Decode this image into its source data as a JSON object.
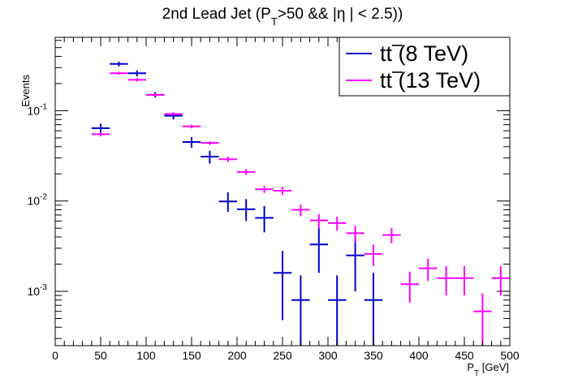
{
  "chart_data": {
    "type": "scatter",
    "title": "2nd Lead Jet (P_T>50 && |η | < 2.5))",
    "title_parts": {
      "a": "2nd Lead Jet (P",
      "sub": "T",
      "b": ">50 && |η | < 2.5))"
    },
    "xlabel": "P_T [GeV]",
    "xlabel_parts": {
      "a": "P",
      "sub": "T",
      "b": " [GeV]"
    },
    "ylabel": "Events",
    "xlim": [
      0,
      500
    ],
    "ylim": [
      0.00025,
      0.65
    ],
    "yscale": "log",
    "x_ticks": [
      0,
      50,
      100,
      150,
      200,
      250,
      300,
      350,
      400,
      450,
      500
    ],
    "x_tick_labels": [
      "0",
      "50",
      "100",
      "150",
      "200",
      "250",
      "300",
      "350",
      "400",
      "450",
      "500"
    ],
    "y_ticks": [
      0.001,
      0.01,
      0.1
    ],
    "y_tick_labels": [
      {
        "base": "10",
        "exp": "-3"
      },
      {
        "base": "10",
        "exp": "-2"
      },
      {
        "base": "10",
        "exp": "-1"
      }
    ],
    "grid": false,
    "legend_position": "top-right",
    "series": [
      {
        "name": "tt̄ (8 TeV)",
        "legend_parts": {
          "a": "t",
          "b": "t",
          "c": " (8 TeV)"
        },
        "color": "#0000cc",
        "x": [
          50,
          70,
          90,
          110,
          130,
          150,
          170,
          190,
          210,
          230,
          250,
          270,
          290,
          310,
          330,
          350
        ],
        "x_half_width": 10,
        "y": [
          0.064,
          0.33,
          0.26,
          0.15,
          0.088,
          0.045,
          0.031,
          0.0099,
          0.0081,
          0.0065,
          0.0016,
          0.0008,
          0.0033,
          0.0008,
          0.0025,
          0.0008
        ],
        "y_low": [
          0.057,
          0.31,
          0.24,
          0.14,
          0.08,
          0.039,
          0.026,
          0.0076,
          0.006,
          0.0045,
          0.00048,
          0.0001,
          0.0016,
          0.0001,
          0.001,
          0.0001
        ],
        "y_high": [
          0.072,
          0.35,
          0.28,
          0.16,
          0.096,
          0.051,
          0.036,
          0.0125,
          0.0105,
          0.0088,
          0.0028,
          0.0015,
          0.005,
          0.0015,
          0.004,
          0.0016
        ]
      },
      {
        "name": "tt̄ (13 TeV)",
        "legend_parts": {
          "a": "t",
          "b": "t",
          "c": " (13 TeV)"
        },
        "color": "#ff00ff",
        "x": [
          50,
          70,
          90,
          110,
          130,
          150,
          170,
          190,
          210,
          230,
          250,
          270,
          290,
          310,
          330,
          350,
          370,
          390,
          410,
          430,
          450,
          470,
          490
        ],
        "x_half_width": 10,
        "y": [
          0.055,
          0.26,
          0.22,
          0.15,
          0.092,
          0.067,
          0.044,
          0.029,
          0.021,
          0.0135,
          0.013,
          0.008,
          0.0061,
          0.0057,
          0.0044,
          0.0026,
          0.0042,
          0.0012,
          0.0018,
          0.0014,
          0.0014,
          0.0006,
          0.0014
        ],
        "y_low": [
          0.052,
          0.25,
          0.21,
          0.145,
          0.088,
          0.064,
          0.042,
          0.027,
          0.0195,
          0.0123,
          0.0117,
          0.0068,
          0.005,
          0.0047,
          0.0035,
          0.0019,
          0.0034,
          0.00075,
          0.0013,
          0.0009,
          0.0009,
          0.00025,
          0.0009
        ],
        "y_high": [
          0.058,
          0.27,
          0.23,
          0.155,
          0.096,
          0.07,
          0.046,
          0.031,
          0.0225,
          0.0147,
          0.0143,
          0.0092,
          0.0072,
          0.0067,
          0.0053,
          0.0033,
          0.005,
          0.00165,
          0.0023,
          0.0019,
          0.0019,
          0.00095,
          0.0019
        ]
      }
    ]
  }
}
